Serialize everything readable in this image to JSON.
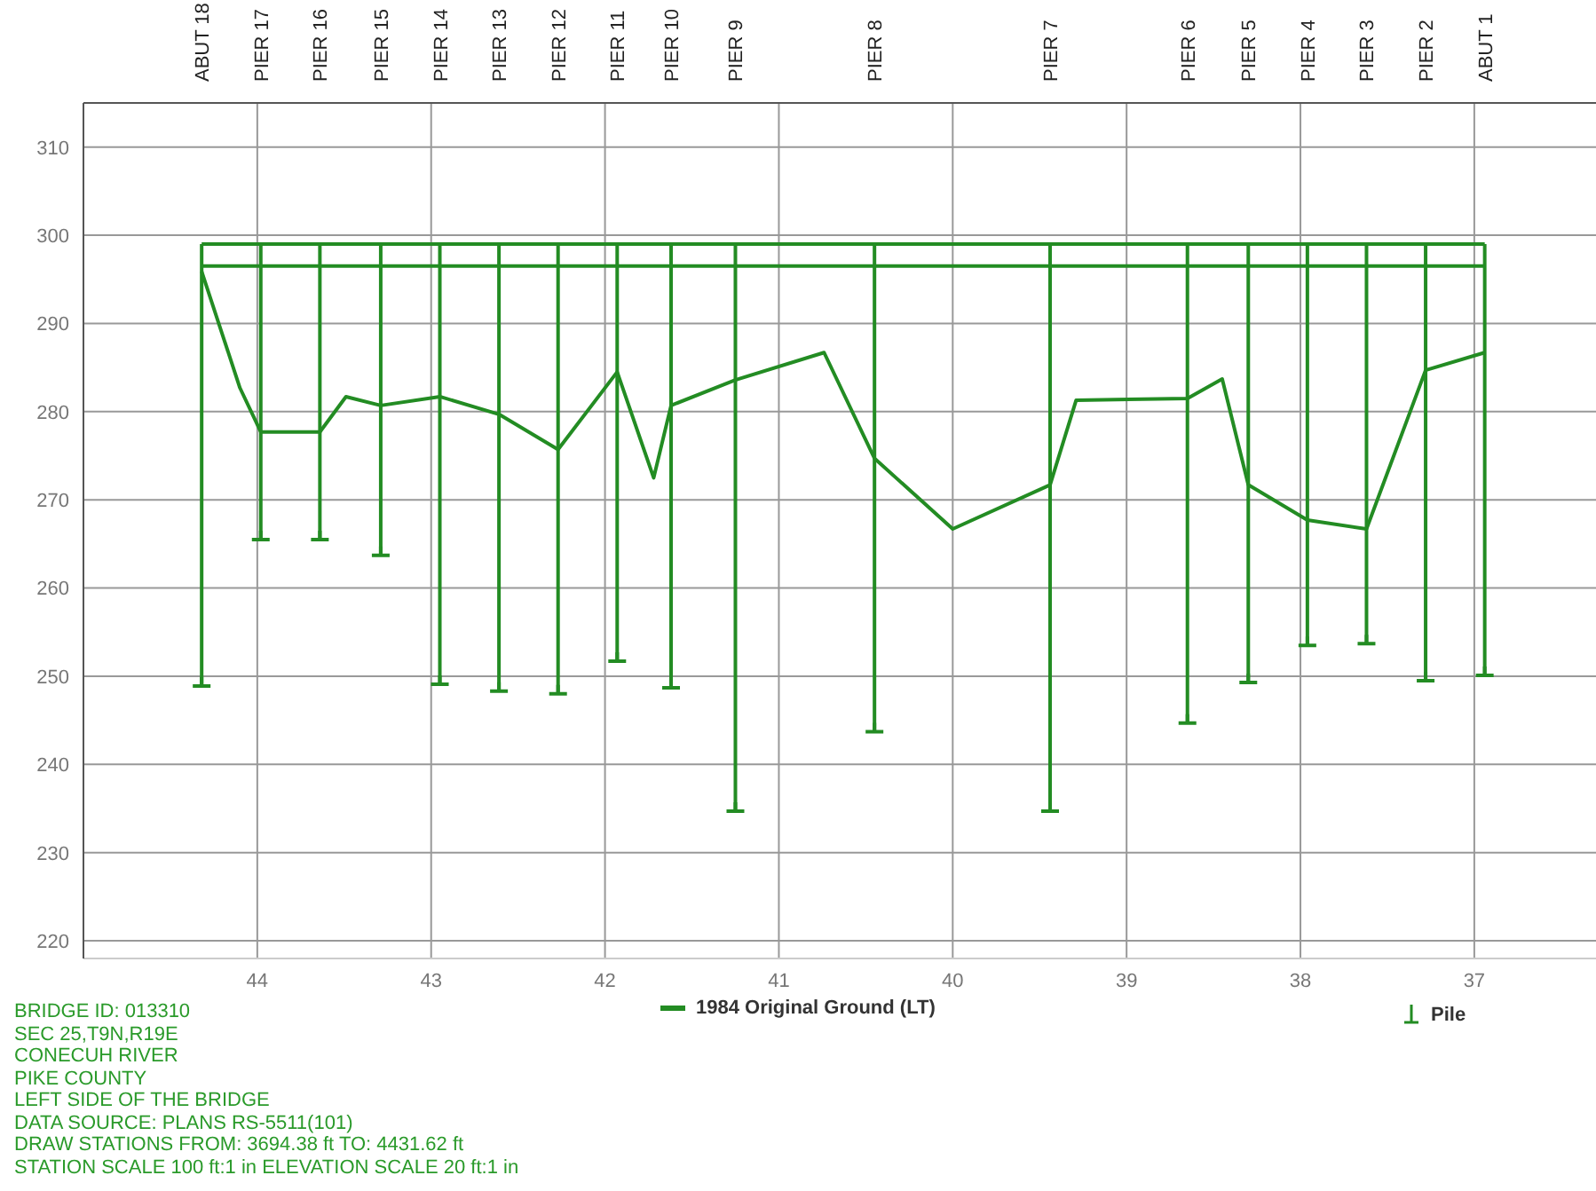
{
  "chart_data": {
    "type": "line",
    "xlim": [
      45,
      36.3
    ],
    "xticks": [
      44,
      43,
      42,
      41,
      40,
      39,
      38,
      37
    ],
    "ylim": [
      218,
      315
    ],
    "yticks": [
      220,
      230,
      240,
      250,
      260,
      270,
      280,
      290,
      300,
      310
    ],
    "grid": true,
    "legend": "bottom",
    "marker": "none",
    "line_style": "solid",
    "series": [
      {
        "name": "1984 Original Ground (LT)",
        "color": "#238c23",
        "x": [
          44.32,
          44.1,
          43.98,
          43.64,
          43.49,
          43.29,
          42.95,
          42.61,
          42.27,
          41.93,
          41.72,
          41.62,
          41.25,
          40.74,
          40.45,
          40.0,
          39.44,
          39.29,
          38.65,
          38.45,
          38.3,
          37.96,
          37.62,
          37.28,
          36.94
        ],
        "values": [
          295.9,
          282.7,
          277.7,
          277.7,
          281.7,
          280.7,
          281.7,
          279.7,
          275.7,
          284.5,
          272.5,
          280.7,
          283.6,
          286.7,
          274.7,
          266.7,
          271.7,
          281.3,
          281.5,
          283.7,
          271.7,
          267.7,
          266.7,
          284.7,
          286.7
        ]
      },
      {
        "color": "#238c23",
        "x": [
          44.32,
          36.94
        ],
        "values": [
          299,
          299
        ]
      },
      {
        "color": "#238c23",
        "x": [
          44.32,
          36.94
        ],
        "values": [
          296.5,
          296.5
        ]
      },
      {
        "name": "Pile",
        "type": "scatter",
        "color": "#238c23",
        "x": [
          44.32,
          43.98,
          43.64,
          43.29,
          42.95,
          42.61,
          42.27,
          41.93,
          41.62,
          41.25,
          40.45,
          39.44,
          38.65,
          38.3,
          37.96,
          37.62,
          37.28,
          36.94
        ],
        "values": [
          248.9,
          265.5,
          265.5,
          263.7,
          249.1,
          248.3,
          248.0,
          251.7,
          248.7,
          234.7,
          243.7,
          234.7,
          244.7,
          249.3,
          253.5,
          253.7,
          249.5,
          250.1
        ],
        "errors": [
          [
            248.9,
            299
          ],
          [
            265.5,
            299
          ],
          [
            265.5,
            299
          ],
          [
            263.7,
            299
          ],
          [
            249.1,
            299
          ],
          [
            248.3,
            299
          ],
          [
            248.0,
            299
          ],
          [
            251.7,
            299
          ],
          [
            248.7,
            299
          ],
          [
            234.7,
            299
          ],
          [
            243.7,
            299
          ],
          [
            234.7,
            299
          ],
          [
            244.7,
            299
          ],
          [
            249.3,
            299
          ],
          [
            253.5,
            299
          ],
          [
            253.7,
            299
          ],
          [
            249.5,
            299
          ],
          [
            250.1,
            299
          ]
        ]
      }
    ],
    "annotations": [
      "ABUT 18",
      "PIER 17",
      "PIER 16",
      "PIER 15",
      "PIER 14",
      "PIER 13",
      "PIER 12",
      "PIER 11",
      "PIER 10",
      "PIER 9",
      "PIER 8",
      "PIER 7",
      "PIER 6",
      "PIER 5",
      "PIER 4",
      "PIER 3",
      "PIER 2",
      "ABUT 1",
      "BRIDGE ID: 013310",
      "SEC 25,T9N,R19E",
      "CONECUH RIVER",
      "PIKE COUNTY",
      "LEFT SIDE OF THE BRIDGE",
      "DATA SOURCE: PLANS RS-5511(101)",
      "DRAW STATIONS FROM: 3694.38 ft TO: 4431.62 ft",
      "STATION SCALE 100 ft:1 in ELEVATION SCALE 20 ft:1 in"
    ]
  }
}
